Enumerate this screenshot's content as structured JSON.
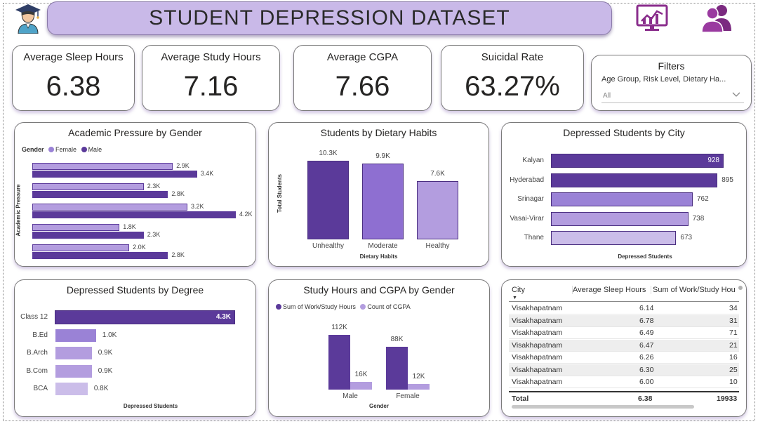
{
  "header": {
    "title": "STUDENT DEPRESSION DATASET",
    "logo_icon": "graduate-icon",
    "report_icon": "monitor-chart-icon",
    "users_icon": "users-icon"
  },
  "kpis": [
    {
      "label": "Average Sleep Hours",
      "value": "6.38"
    },
    {
      "label": "Average Study Hours",
      "value": "7.16"
    },
    {
      "label": "Average CGPA",
      "value": "7.66"
    },
    {
      "label": "Suicidal Rate",
      "value": "63.27%"
    }
  ],
  "filters": {
    "title": "Filters",
    "subtitle": "Age Group, Risk Level, Dietary Ha...",
    "selected": "All"
  },
  "colors": {
    "dark": "#5b3a9a",
    "mid": "#8e6fd1",
    "light": "#b39ddf",
    "lighter": "#cbbde9",
    "title_bg": "#c9b9e8"
  },
  "charts": {
    "pressure": {
      "title": "Academic Pressure by Gender",
      "legend_title": "Gender",
      "ylabel": "Academic Pressure",
      "chart_data": {
        "type": "bar",
        "orientation": "horizontal",
        "series": [
          {
            "name": "Female",
            "values": [
              2.9,
              2.3,
              3.2,
              1.8,
              2.0
            ],
            "labels": [
              "2.9K",
              "2.3K",
              "3.2K",
              "1.8K",
              "2.0K"
            ]
          },
          {
            "name": "Male",
            "values": [
              3.4,
              2.8,
              4.2,
              2.3,
              2.8
            ],
            "labels": [
              "3.4K",
              "2.8K",
              "4.2K",
              "2.3K",
              "2.8K"
            ]
          }
        ]
      }
    },
    "dietary": {
      "title": "Students by Dietary Habits",
      "xlabel": "Dietary Habits",
      "ylabel": "Total Students",
      "chart_data": {
        "type": "bar",
        "categories": [
          "Unhealthy",
          "Moderate",
          "Healthy"
        ],
        "values": [
          10.3,
          9.9,
          7.6
        ],
        "labels": [
          "10.3K",
          "9.9K",
          "7.6K"
        ]
      }
    },
    "city": {
      "title": "Depressed Students by City",
      "xlabel": "Depressed Students",
      "chart_data": {
        "type": "bar",
        "orientation": "horizontal",
        "categories": [
          "Kalyan",
          "Hyderabad",
          "Srinagar",
          "Vasai-Virar",
          "Thane"
        ],
        "values": [
          928,
          895,
          762,
          738,
          673
        ],
        "labels": [
          "928",
          "895",
          "762",
          "738",
          "673"
        ]
      }
    },
    "degree": {
      "title": "Depressed Students by Degree",
      "xlabel": "Depressed Students",
      "chart_data": {
        "type": "bar",
        "orientation": "horizontal",
        "categories": [
          "Class 12",
          "B.Ed",
          "B.Arch",
          "B.Com",
          "BCA"
        ],
        "values": [
          4.3,
          1.0,
          0.9,
          0.9,
          0.8
        ],
        "labels": [
          "4.3K",
          "1.0K",
          "0.9K",
          "0.9K",
          "0.8K"
        ]
      }
    },
    "study": {
      "title": "Study Hours and CGPA by Gender",
      "xlabel": "Gender",
      "chart_data": {
        "type": "bar",
        "categories": [
          "Male",
          "Female"
        ],
        "series": [
          {
            "name": "Sum of Work/Study Hours",
            "values": [
              112,
              88
            ],
            "labels": [
              "112K",
              "88K"
            ]
          },
          {
            "name": "Count of CGPA",
            "values": [
              16,
              12
            ],
            "labels": [
              "16K",
              "12K"
            ]
          }
        ]
      }
    }
  },
  "table": {
    "columns": [
      "City",
      "Average Sleep Hours",
      "Sum of Work/Study Hou"
    ],
    "rows": [
      [
        "Visakhapatnam",
        "6.14",
        "34"
      ],
      [
        "Visakhapatnam",
        "6.78",
        "31"
      ],
      [
        "Visakhapatnam",
        "6.49",
        "71"
      ],
      [
        "Visakhapatnam",
        "6.47",
        "21"
      ],
      [
        "Visakhapatnam",
        "6.26",
        "16"
      ],
      [
        "Visakhapatnam",
        "6.30",
        "25"
      ],
      [
        "Visakhapatnam",
        "6.00",
        "10"
      ]
    ],
    "total": [
      "Total",
      "6.38",
      "19933"
    ]
  }
}
